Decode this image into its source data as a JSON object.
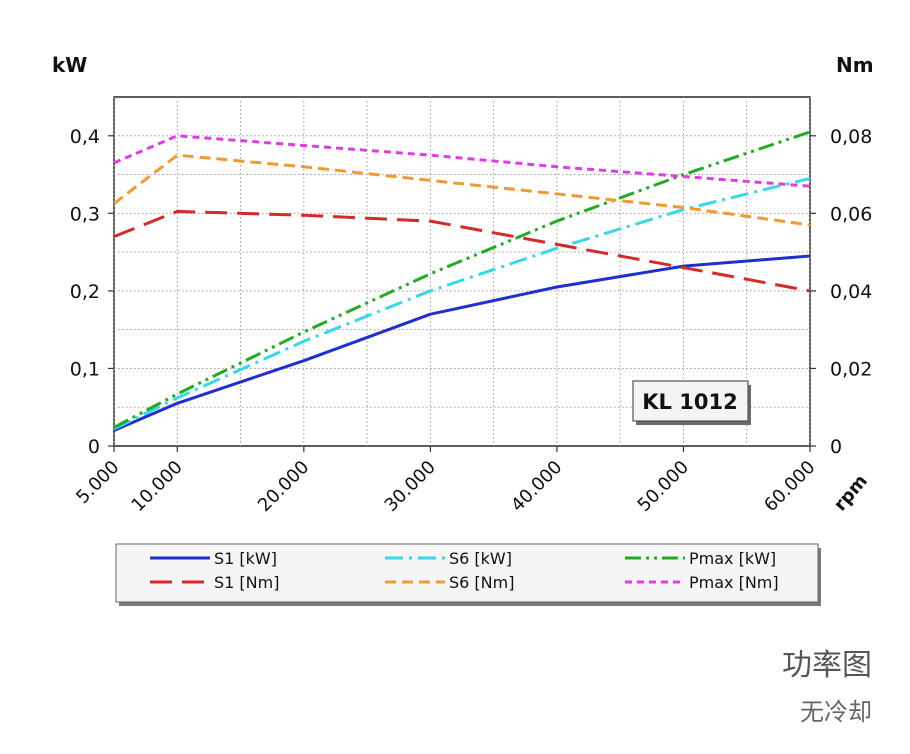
{
  "chart_data": {
    "type": "line",
    "badge": "KL 1012",
    "x_unit_label": "rpm",
    "left_axis_unit": "kW",
    "right_axis_unit": "Nm",
    "x_ticks": [
      "5.000",
      "10.000",
      "20.000",
      "30.000",
      "40.000",
      "50.000",
      "60.000"
    ],
    "x_tick_values": [
      5000,
      10000,
      20000,
      30000,
      40000,
      50000,
      60000
    ],
    "xlim": [
      5000,
      60000
    ],
    "left_ticks": [
      "0",
      "0,1",
      "0,2",
      "0,3",
      "0,4"
    ],
    "left_tick_values": [
      0,
      0.1,
      0.2,
      0.3,
      0.4
    ],
    "ylim_left": [
      0,
      0.45
    ],
    "right_ticks": [
      "0",
      "0,02",
      "0,04",
      "0,06",
      "0,08"
    ],
    "right_tick_values": [
      0,
      0.02,
      0.04,
      0.06,
      0.08
    ],
    "ylim_right": [
      0,
      0.09
    ],
    "grid": true,
    "legend_position": "bottom",
    "series": [
      {
        "name": "S1 [kW]",
        "axis": "left",
        "color": "#1f2fd0",
        "dash": "solid",
        "x": [
          5000,
          10000,
          20000,
          30000,
          40000,
          50000,
          60000
        ],
        "values": [
          0.02,
          0.055,
          0.11,
          0.17,
          0.205,
          0.232,
          0.245
        ]
      },
      {
        "name": "S6 [kW]",
        "axis": "left",
        "color": "#35d8e8",
        "dash": "dashdot",
        "x": [
          5000,
          10000,
          20000,
          30000,
          40000,
          50000,
          60000
        ],
        "values": [
          0.022,
          0.062,
          0.135,
          0.2,
          0.255,
          0.305,
          0.345
        ]
      },
      {
        "name": "Pmax [kW]",
        "axis": "left",
        "color": "#22aa22",
        "dash": "dashdotdot",
        "x": [
          5000,
          10000,
          20000,
          30000,
          40000,
          50000,
          60000
        ],
        "values": [
          0.024,
          0.067,
          0.147,
          0.222,
          0.29,
          0.35,
          0.405
        ]
      },
      {
        "name": "S1 [Nm]",
        "axis": "right",
        "color": "#d42a2a",
        "dash": "longdash",
        "x": [
          5000,
          10000,
          20000,
          30000,
          40000,
          50000,
          60000
        ],
        "values": [
          0.054,
          0.0605,
          0.0595,
          0.058,
          0.052,
          0.046,
          0.04
        ]
      },
      {
        "name": "S6 [Nm]",
        "axis": "right",
        "color": "#f29a2e",
        "dash": "dash",
        "x": [
          5000,
          10000,
          20000,
          30000,
          40000,
          50000,
          60000
        ],
        "values": [
          0.0625,
          0.075,
          0.072,
          0.0685,
          0.065,
          0.0615,
          0.057
        ]
      },
      {
        "name": "Pmax [Nm]",
        "axis": "right",
        "color": "#e43ae4",
        "dash": "shortdash",
        "x": [
          5000,
          10000,
          20000,
          30000,
          40000,
          50000,
          60000
        ],
        "values": [
          0.073,
          0.08,
          0.0775,
          0.075,
          0.072,
          0.0695,
          0.067
        ]
      }
    ]
  },
  "caption": {
    "title": "功率图",
    "subtitle": "无冷却"
  }
}
